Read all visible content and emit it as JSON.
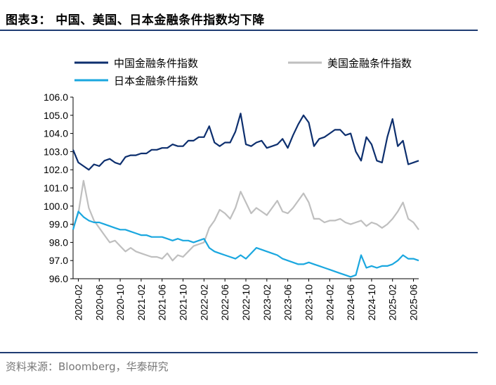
{
  "title": "图表3：  中国、美国、日本金融条件指数均下降",
  "source": "资料来源：Bloomberg，华泰研究",
  "colors": {
    "rule": "#1f3c73",
    "china": "#0d2f6e",
    "us": "#bfbfbf",
    "japan": "#1aa7df"
  },
  "chart_data": {
    "type": "line",
    "title": "",
    "xlabel": "",
    "ylabel": "",
    "ylim": [
      96.0,
      106.0
    ],
    "yticks": [
      "96.0",
      "97.0",
      "98.0",
      "99.0",
      "100.0",
      "101.0",
      "102.0",
      "103.0",
      "104.0",
      "105.0",
      "106.0"
    ],
    "xticks": [
      "2020-02",
      "2020-06",
      "2020-10",
      "2021-02",
      "2021-06",
      "2021-10",
      "2022-02",
      "2022-06",
      "2022-10",
      "2023-02",
      "2023-06",
      "2023-10",
      "2024-02",
      "2024-06",
      "2024-10",
      "2025-02",
      "2025-06"
    ],
    "legend": [
      "中国金融条件指数",
      "美国金融条件指数",
      "日本金融条件指数"
    ],
    "legend_position": "top",
    "grid": false,
    "x_start": "2020-01",
    "x_end": "2025-07",
    "series": [
      {
        "name": "中国金融条件指数",
        "color": "#0d2f6e",
        "x": [
          "2020-01",
          "2020-02",
          "2020-03",
          "2020-04",
          "2020-05",
          "2020-06",
          "2020-07",
          "2020-08",
          "2020-09",
          "2020-10",
          "2020-11",
          "2020-12",
          "2021-01",
          "2021-02",
          "2021-03",
          "2021-04",
          "2021-05",
          "2021-06",
          "2021-07",
          "2021-08",
          "2021-09",
          "2021-10",
          "2021-11",
          "2021-12",
          "2022-01",
          "2022-02",
          "2022-03",
          "2022-04",
          "2022-05",
          "2022-06",
          "2022-07",
          "2022-08",
          "2022-09",
          "2022-10",
          "2022-11",
          "2022-12",
          "2023-01",
          "2023-02",
          "2023-03",
          "2023-04",
          "2023-05",
          "2023-06",
          "2023-07",
          "2023-08",
          "2023-09",
          "2023-10",
          "2023-11",
          "2023-12",
          "2024-01",
          "2024-02",
          "2024-03",
          "2024-04",
          "2024-05",
          "2024-06",
          "2024-07",
          "2024-08",
          "2024-09",
          "2024-10",
          "2024-11",
          "2024-12",
          "2025-01",
          "2025-02",
          "2025-03",
          "2025-04",
          "2025-05",
          "2025-06",
          "2025-07"
        ],
        "values": [
          103.1,
          102.4,
          102.2,
          102.0,
          102.3,
          102.2,
          102.5,
          102.6,
          102.4,
          102.3,
          102.7,
          102.8,
          102.8,
          102.9,
          102.9,
          103.1,
          103.1,
          103.2,
          103.2,
          103.4,
          103.3,
          103.3,
          103.6,
          103.6,
          103.8,
          103.8,
          104.4,
          103.5,
          103.3,
          103.5,
          103.5,
          104.1,
          105.1,
          103.4,
          103.3,
          103.5,
          103.6,
          103.2,
          103.3,
          103.4,
          103.7,
          103.2,
          103.9,
          104.5,
          105.0,
          104.6,
          103.3,
          103.7,
          103.8,
          104.0,
          104.2,
          104.2,
          103.9,
          104.0,
          103.0,
          102.5,
          103.8,
          103.4,
          102.5,
          102.4,
          103.8,
          104.8,
          103.3,
          103.6,
          102.3,
          102.4,
          102.5
        ]
      },
      {
        "name": "美国金融条件指数",
        "color": "#bfbfbf",
        "x": [
          "2020-01",
          "2020-02",
          "2020-03",
          "2020-04",
          "2020-05",
          "2020-06",
          "2020-07",
          "2020-08",
          "2020-09",
          "2020-10",
          "2020-11",
          "2020-12",
          "2021-01",
          "2021-02",
          "2021-03",
          "2021-04",
          "2021-05",
          "2021-06",
          "2021-07",
          "2021-08",
          "2021-09",
          "2021-10",
          "2021-11",
          "2021-12",
          "2022-01",
          "2022-02",
          "2022-03",
          "2022-04",
          "2022-05",
          "2022-06",
          "2022-07",
          "2022-08",
          "2022-09",
          "2022-10",
          "2022-11",
          "2022-12",
          "2023-01",
          "2023-02",
          "2023-03",
          "2023-04",
          "2023-05",
          "2023-06",
          "2023-07",
          "2023-08",
          "2023-09",
          "2023-10",
          "2023-11",
          "2023-12",
          "2024-01",
          "2024-02",
          "2024-03",
          "2024-04",
          "2024-05",
          "2024-06",
          "2024-07",
          "2024-08",
          "2024-09",
          "2024-10",
          "2024-11",
          "2024-12",
          "2025-01",
          "2025-02",
          "2025-03",
          "2025-04",
          "2025-05",
          "2025-06",
          "2025-07"
        ],
        "values": [
          98.8,
          99.6,
          101.4,
          99.9,
          99.2,
          98.8,
          98.4,
          98.0,
          98.1,
          97.8,
          97.5,
          97.7,
          97.5,
          97.4,
          97.3,
          97.2,
          97.2,
          97.1,
          97.4,
          97.0,
          97.3,
          97.2,
          97.5,
          97.8,
          97.9,
          98.0,
          98.8,
          99.2,
          99.8,
          99.6,
          99.3,
          99.9,
          100.8,
          100.2,
          99.6,
          99.9,
          99.7,
          99.5,
          99.9,
          100.3,
          99.7,
          99.6,
          99.9,
          100.3,
          100.7,
          100.2,
          99.3,
          99.3,
          99.1,
          99.2,
          99.2,
          99.3,
          99.1,
          99.0,
          99.1,
          99.2,
          98.9,
          99.1,
          99.0,
          98.8,
          99.0,
          99.3,
          99.7,
          100.2,
          99.3,
          99.1,
          98.7
        ]
      },
      {
        "name": "日本金融条件指数",
        "color": "#1aa7df",
        "x": [
          "2020-01",
          "2020-02",
          "2020-03",
          "2020-04",
          "2020-05",
          "2020-06",
          "2020-07",
          "2020-08",
          "2020-09",
          "2020-10",
          "2020-11",
          "2020-12",
          "2021-01",
          "2021-02",
          "2021-03",
          "2021-04",
          "2021-05",
          "2021-06",
          "2021-07",
          "2021-08",
          "2021-09",
          "2021-10",
          "2021-11",
          "2021-12",
          "2022-01",
          "2022-02",
          "2022-03",
          "2022-04",
          "2022-05",
          "2022-06",
          "2022-07",
          "2022-08",
          "2022-09",
          "2022-10",
          "2022-11",
          "2022-12",
          "2023-01",
          "2023-02",
          "2023-03",
          "2023-04",
          "2023-05",
          "2023-06",
          "2023-07",
          "2023-08",
          "2023-09",
          "2023-10",
          "2023-11",
          "2023-12",
          "2024-01",
          "2024-02",
          "2024-03",
          "2024-04",
          "2024-05",
          "2024-06",
          "2024-07",
          "2024-08",
          "2024-09",
          "2024-10",
          "2024-11",
          "2024-12",
          "2025-01",
          "2025-02",
          "2025-03",
          "2025-04",
          "2025-05",
          "2025-06",
          "2025-07"
        ],
        "values": [
          98.7,
          99.7,
          99.4,
          99.2,
          99.1,
          99.1,
          99.0,
          98.9,
          98.8,
          98.7,
          98.7,
          98.6,
          98.5,
          98.4,
          98.4,
          98.3,
          98.3,
          98.3,
          98.2,
          98.1,
          98.2,
          98.1,
          98.1,
          98.0,
          98.1,
          98.2,
          97.7,
          97.5,
          97.4,
          97.3,
          97.2,
          97.1,
          97.3,
          97.1,
          97.4,
          97.7,
          97.6,
          97.5,
          97.4,
          97.3,
          97.1,
          97.0,
          96.9,
          96.8,
          96.8,
          96.9,
          96.8,
          96.7,
          96.6,
          96.5,
          96.4,
          96.3,
          96.2,
          96.1,
          96.2,
          97.3,
          96.6,
          96.7,
          96.6,
          96.7,
          96.7,
          96.8,
          97.0,
          97.3,
          97.1,
          97.1,
          97.0
        ]
      }
    ]
  }
}
